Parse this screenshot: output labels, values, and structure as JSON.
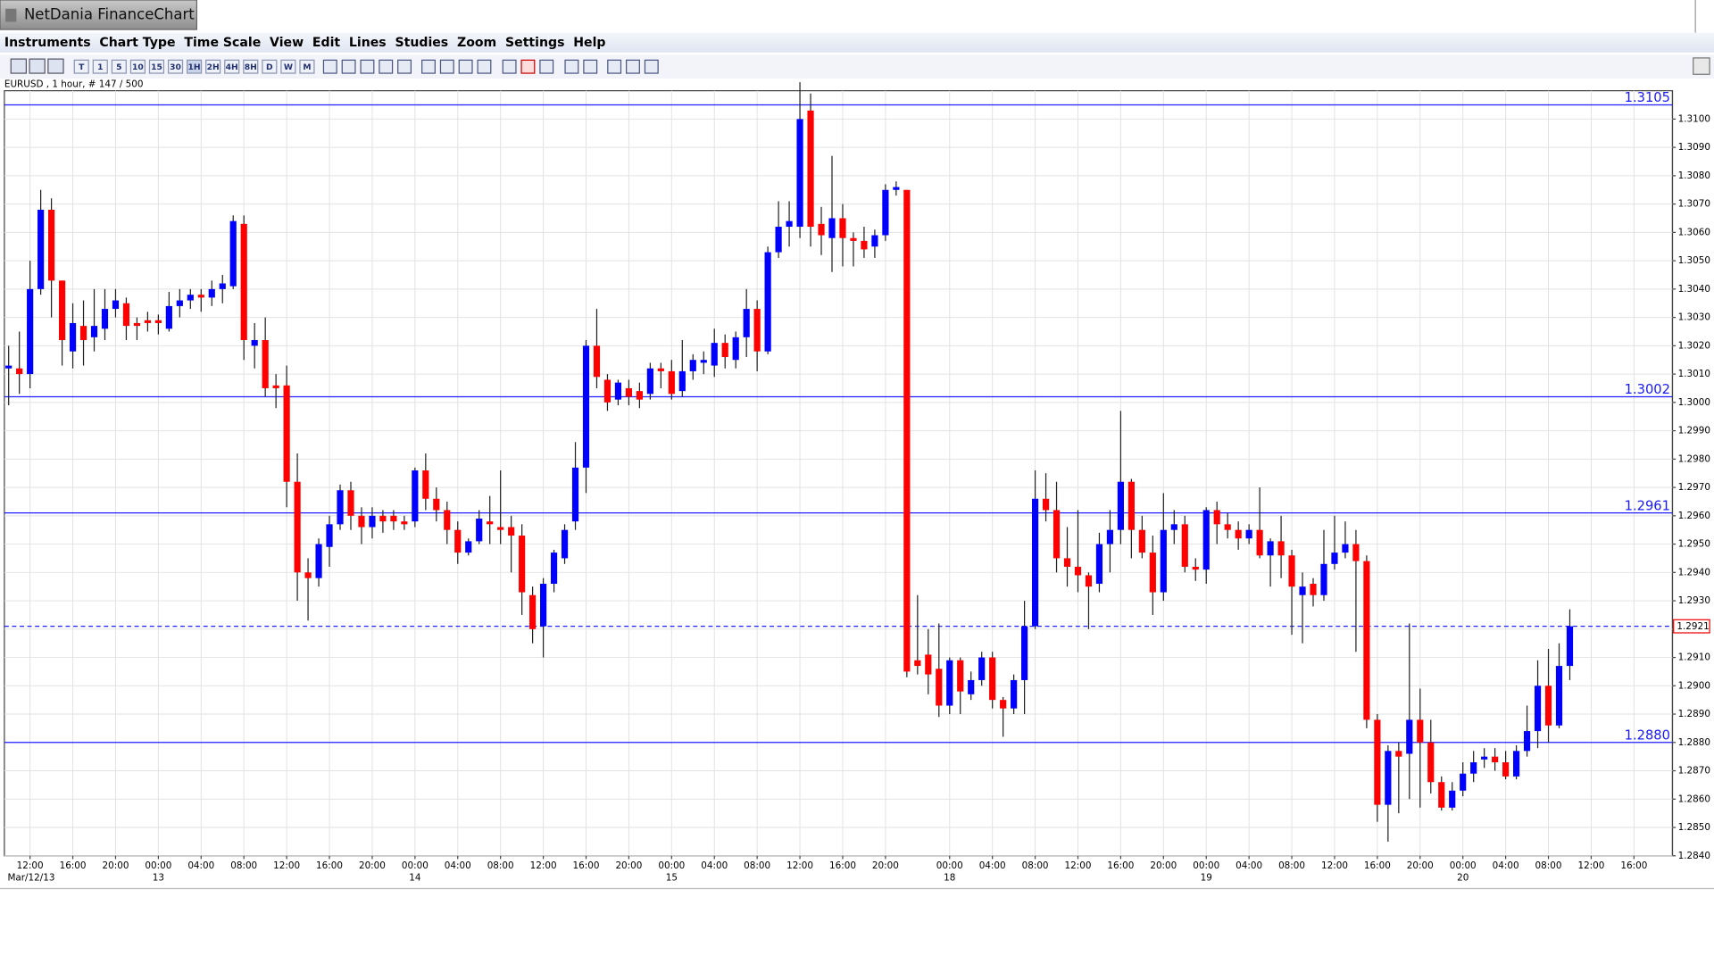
{
  "window": {
    "title": "NetDania FinanceChart"
  },
  "menu": [
    "Instruments",
    "Chart Type",
    "Time Scale",
    "View",
    "Edit",
    "Lines",
    "Studies",
    "Zoom",
    "Settings",
    "Help"
  ],
  "toolbar": [
    "T",
    "1",
    "5",
    "10",
    "15",
    "30",
    "1H",
    "2H",
    "4H",
    "8H",
    "D",
    "W",
    "M"
  ],
  "chart_data": {
    "type": "candlestick",
    "info": "EURUSD , 1 hour, # 147 / 500",
    "up_color": "#0000ff",
    "down_color": "#ff0000",
    "wick_color": "#222222",
    "grid": true,
    "xlim": [
      -0.4,
      155.6
    ],
    "ylim": [
      1.284,
      1.311
    ],
    "yticks": [
      {
        "value": 1.284,
        "label": "1.2840"
      },
      {
        "value": 1.285,
        "label": "1.2850"
      },
      {
        "value": 1.286,
        "label": "1.2860"
      },
      {
        "value": 1.287,
        "label": "1.2870"
      },
      {
        "value": 1.288,
        "label": "1.2880"
      },
      {
        "value": 1.289,
        "label": "1.2890"
      },
      {
        "value": 1.29,
        "label": "1.2900"
      },
      {
        "value": 1.291,
        "label": "1.2910"
      },
      {
        "value": 1.292,
        "label": "1.2920"
      },
      {
        "value": 1.293,
        "label": "1.2930"
      },
      {
        "value": 1.294,
        "label": "1.2940"
      },
      {
        "value": 1.295,
        "label": "1.2950"
      },
      {
        "value": 1.296,
        "label": "1.2960"
      },
      {
        "value": 1.297,
        "label": "1.2970"
      },
      {
        "value": 1.298,
        "label": "1.2980"
      },
      {
        "value": 1.299,
        "label": "1.2990"
      },
      {
        "value": 1.3,
        "label": "1.3000"
      },
      {
        "value": 1.301,
        "label": "1.3010"
      },
      {
        "value": 1.302,
        "label": "1.3020"
      },
      {
        "value": 1.303,
        "label": "1.3030"
      },
      {
        "value": 1.304,
        "label": "1.3040"
      },
      {
        "value": 1.305,
        "label": "1.3050"
      },
      {
        "value": 1.306,
        "label": "1.3060"
      },
      {
        "value": 1.307,
        "label": "1.3070"
      },
      {
        "value": 1.308,
        "label": "1.3080"
      },
      {
        "value": 1.309,
        "label": "1.3090"
      },
      {
        "value": 1.31,
        "label": "1.3100"
      }
    ],
    "xticks": [
      {
        "value": 2,
        "label": "12:00"
      },
      {
        "value": 6,
        "label": "16:00"
      },
      {
        "value": 10,
        "label": "20:00"
      },
      {
        "value": 14,
        "label": "00:00"
      },
      {
        "value": 18,
        "label": "04:00"
      },
      {
        "value": 22,
        "label": "08:00"
      },
      {
        "value": 26,
        "label": "12:00"
      },
      {
        "value": 30,
        "label": "16:00"
      },
      {
        "value": 34,
        "label": "20:00"
      },
      {
        "value": 38,
        "label": "00:00"
      },
      {
        "value": 42,
        "label": "04:00"
      },
      {
        "value": 46,
        "label": "08:00"
      },
      {
        "value": 50,
        "label": "12:00"
      },
      {
        "value": 54,
        "label": "16:00"
      },
      {
        "value": 58,
        "label": "20:00"
      },
      {
        "value": 62,
        "label": "00:00"
      },
      {
        "value": 66,
        "label": "04:00"
      },
      {
        "value": 70,
        "label": "08:00"
      },
      {
        "value": 74,
        "label": "12:00"
      },
      {
        "value": 78,
        "label": "16:00"
      },
      {
        "value": 82,
        "label": "20:00"
      },
      {
        "value": 88,
        "label": "00:00"
      },
      {
        "value": 92,
        "label": "04:00"
      },
      {
        "value": 96,
        "label": "08:00"
      },
      {
        "value": 100,
        "label": "12:00"
      },
      {
        "value": 104,
        "label": "16:00"
      },
      {
        "value": 108,
        "label": "20:00"
      },
      {
        "value": 112,
        "label": "00:00"
      },
      {
        "value": 116,
        "label": "04:00"
      },
      {
        "value": 120,
        "label": "08:00"
      },
      {
        "value": 124,
        "label": "12:00"
      },
      {
        "value": 128,
        "label": "16:00"
      },
      {
        "value": 132,
        "label": "20:00"
      },
      {
        "value": 136,
        "label": "00:00"
      },
      {
        "value": 140,
        "label": "04:00"
      },
      {
        "value": 144,
        "label": "08:00"
      },
      {
        "value": 148,
        "label": "12:00"
      },
      {
        "value": 152,
        "label": "16:00"
      }
    ],
    "xdates": [
      {
        "value": 0,
        "label": "Mar/12/13"
      },
      {
        "value": 14,
        "label": "13"
      },
      {
        "value": 38,
        "label": "14"
      },
      {
        "value": 62,
        "label": "15"
      },
      {
        "value": 88,
        "label": "18"
      },
      {
        "value": 112,
        "label": "19"
      },
      {
        "value": 136,
        "label": "20"
      }
    ],
    "levels": [
      1.3105,
      1.3002,
      1.2961,
      {
        "value": 1.288,
        "label": "1.2880"
      }
    ],
    "last_price": 1.2921,
    "open": [
      1.3012,
      1.3012,
      1.301,
      1.304,
      1.3068,
      1.3043,
      1.3018,
      1.3027,
      1.3023,
      1.3026,
      1.3033,
      1.3035,
      1.3028,
      1.3029,
      1.3029,
      1.3026,
      1.3034,
      1.3036,
      1.3038,
      1.3037,
      1.304,
      1.3041,
      1.3063,
      1.302,
      1.3022,
      1.3006,
      1.3006,
      1.2972,
      1.294,
      1.2938,
      1.2949,
      1.2957,
      1.2969,
      1.296,
      1.2956,
      1.296,
      1.296,
      1.2958,
      1.2958,
      1.2976,
      1.2966,
      1.2962,
      1.2955,
      1.2947,
      1.2951,
      1.2958,
      1.2956,
      1.2956,
      1.2953,
      1.2932,
      1.2921,
      1.2936,
      1.2945,
      1.2958,
      1.2977,
      1.302,
      1.3008,
      1.3001,
      1.3005,
      1.3004,
      1.3003,
      1.3012,
      1.3011,
      1.3004,
      1.3011,
      1.3014,
      1.3013,
      1.3021,
      1.3015,
      1.3023,
      1.3033,
      1.3018,
      1.3053,
      1.3062,
      1.3062,
      1.3103,
      1.3063,
      1.3058,
      1.3065,
      1.3058,
      1.3057,
      1.3055,
      1.3059,
      1.3075,
      1.3075,
      1.2909,
      1.2911,
      1.2906,
      1.2893,
      1.2909,
      1.2897,
      1.2902,
      1.291,
      1.2895,
      1.2892,
      1.2902,
      1.2921,
      1.2966,
      1.2962,
      1.2945,
      1.2942,
      1.2939,
      1.2936,
      1.295,
      1.2955,
      1.2972,
      1.2955,
      1.2947,
      1.2933,
      1.2955,
      1.2957,
      1.2942,
      1.2941,
      1.2962,
      1.2957,
      1.2955,
      1.2952,
      1.2955,
      1.2946,
      1.2951,
      1.2946,
      1.2932,
      1.2936,
      1.2932,
      1.2943,
      1.2947,
      1.295,
      1.2944,
      1.2888,
      1.2858,
      1.2877,
      1.2876,
      1.2888,
      1.288,
      1.2866,
      1.2857,
      1.2863,
      1.2869,
      1.2874,
      1.2875,
      1.2873,
      1.2868,
      1.2877,
      1.2884,
      1.29,
      1.2886,
      1.2907
    ],
    "high": [
      1.302,
      1.3025,
      1.305,
      1.3075,
      1.3072,
      1.3043,
      1.3035,
      1.3036,
      1.304,
      1.304,
      1.304,
      1.3037,
      1.303,
      1.3032,
      1.3031,
      1.3039,
      1.304,
      1.304,
      1.304,
      1.3043,
      1.3045,
      1.3066,
      1.3066,
      1.3028,
      1.303,
      1.301,
      1.3013,
      1.2982,
      1.2945,
      1.2952,
      1.296,
      1.2971,
      1.2972,
      1.2963,
      1.2963,
      1.2962,
      1.2962,
      1.296,
      1.2977,
      1.2982,
      1.297,
      1.2965,
      1.2958,
      1.2952,
      1.2962,
      1.2967,
      1.2976,
      1.296,
      1.2957,
      1.2935,
      1.2938,
      1.2948,
      1.2957,
      1.2986,
      1.3022,
      1.3033,
      1.301,
      1.3008,
      1.3008,
      1.3007,
      1.3014,
      1.3014,
      1.3015,
      1.3022,
      1.3017,
      1.3018,
      1.3026,
      1.3024,
      1.3025,
      1.304,
      1.3036,
      1.3055,
      1.3071,
      1.3071,
      1.3113,
      1.3109,
      1.3069,
      1.3087,
      1.307,
      1.306,
      1.3062,
      1.3061,
      1.3077,
      1.3078,
      1.3075,
      1.2932,
      1.292,
      1.2922,
      1.291,
      1.291,
      1.2905,
      1.2912,
      1.2912,
      1.2896,
      1.2904,
      1.293,
      1.2976,
      1.2975,
      1.2972,
      1.2956,
      1.2962,
      1.294,
      1.2954,
      1.2962,
      1.2997,
      1.2973,
      1.296,
      1.2953,
      1.2968,
      1.2962,
      1.296,
      1.2945,
      1.2963,
      1.2965,
      1.2961,
      1.2958,
      1.2957,
      1.297,
      1.2952,
      1.296,
      1.2948,
      1.294,
      1.2938,
      1.2955,
      1.296,
      1.2958,
      1.2955,
      1.2946,
      1.289,
      1.2879,
      1.288,
      1.2922,
      1.2899,
      1.2888,
      1.2868,
      1.2866,
      1.2873,
      1.2877,
      1.2878,
      1.2878,
      1.2877,
      1.2879,
      1.2893,
      1.2909,
      1.2913,
      1.2915,
      1.2927
    ],
    "low": [
      1.2999,
      1.3003,
      1.3005,
      1.3038,
      1.303,
      1.3013,
      1.3012,
      1.3013,
      1.3018,
      1.3022,
      1.303,
      1.3022,
      1.3022,
      1.3025,
      1.3024,
      1.3025,
      1.303,
      1.3033,
      1.3032,
      1.3034,
      1.3035,
      1.304,
      1.3015,
      1.3012,
      1.3002,
      1.2998,
      1.2963,
      1.293,
      1.2923,
      1.2935,
      1.2942,
      1.2955,
      1.2955,
      1.295,
      1.2952,
      1.2954,
      1.2955,
      1.2955,
      1.2956,
      1.2962,
      1.2958,
      1.295,
      1.2943,
      1.2946,
      1.295,
      1.295,
      1.295,
      1.294,
      1.2925,
      1.2915,
      1.291,
      1.2933,
      1.2943,
      1.2955,
      1.2968,
      1.3005,
      1.2997,
      1.2999,
      1.2999,
      1.2998,
      1.3001,
      1.3005,
      1.3001,
      1.3002,
      1.3008,
      1.301,
      1.3009,
      1.3012,
      1.3012,
      1.3016,
      1.3011,
      1.3017,
      1.3051,
      1.3055,
      1.3058,
      1.3055,
      1.3052,
      1.3046,
      1.3048,
      1.3048,
      1.3051,
      1.3051,
      1.3057,
      1.3073,
      1.2903,
      1.2904,
      1.2897,
      1.2889,
      1.289,
      1.289,
      1.2895,
      1.29,
      1.2892,
      1.2882,
      1.289,
      1.289,
      1.292,
      1.2958,
      1.294,
      1.2935,
      1.2933,
      1.292,
      1.2933,
      1.294,
      1.295,
      1.2945,
      1.2945,
      1.2925,
      1.293,
      1.295,
      1.294,
      1.2937,
      1.2936,
      1.295,
      1.2952,
      1.2948,
      1.295,
      1.2945,
      1.2935,
      1.2938,
      1.2918,
      1.2915,
      1.2928,
      1.293,
      1.2941,
      1.2945,
      1.2912,
      1.2885,
      1.2852,
      1.2845,
      1.2855,
      1.286,
      1.2857,
      1.2862,
      1.2856,
      1.2856,
      1.2861,
      1.2866,
      1.2871,
      1.287,
      1.2867,
      1.2867,
      1.2875,
      1.2878,
      1.288,
      1.2885,
      1.2902
    ],
    "close": [
      1.3013,
      1.301,
      1.304,
      1.3068,
      1.3043,
      1.3022,
      1.3028,
      1.3022,
      1.3027,
      1.3033,
      1.3036,
      1.3027,
      1.3027,
      1.3028,
      1.3028,
      1.3034,
      1.3036,
      1.3038,
      1.3037,
      1.304,
      1.3042,
      1.3064,
      1.3022,
      1.3022,
      1.3005,
      1.3005,
      1.2972,
      1.294,
      1.2938,
      1.295,
      1.2957,
      1.2969,
      1.296,
      1.2956,
      1.296,
      1.2958,
      1.2958,
      1.2957,
      1.2976,
      1.2966,
      1.2962,
      1.2955,
      1.2947,
      1.2951,
      1.2959,
      1.2957,
      1.2955,
      1.2953,
      1.2933,
      1.292,
      1.2936,
      1.2947,
      1.2955,
      1.2977,
      1.302,
      1.3009,
      1.3,
      1.3007,
      1.3002,
      1.3001,
      1.3012,
      1.3011,
      1.3003,
      1.3011,
      1.3015,
      1.3015,
      1.3021,
      1.3016,
      1.3023,
      1.3033,
      1.3018,
      1.3053,
      1.3062,
      1.3064,
      1.31,
      1.3062,
      1.3059,
      1.3065,
      1.3058,
      1.3057,
      1.3054,
      1.3059,
      1.3075,
      1.3076,
      1.2905,
      1.2907,
      1.2904,
      1.2893,
      1.2909,
      1.2898,
      1.2902,
      1.291,
      1.2895,
      1.2892,
      1.2902,
      1.2921,
      1.2966,
      1.2962,
      1.2945,
      1.2942,
      1.2939,
      1.2935,
      1.295,
      1.2955,
      1.2972,
      1.2955,
      1.2947,
      1.2933,
      1.2955,
      1.2957,
      1.2942,
      1.2941,
      1.2962,
      1.2957,
      1.2955,
      1.2952,
      1.2955,
      1.2946,
      1.2951,
      1.2946,
      1.2935,
      1.2935,
      1.2932,
      1.2943,
      1.2947,
      1.295,
      1.2944,
      1.2888,
      1.2858,
      1.2877,
      1.2875,
      1.2888,
      1.288,
      1.2866,
      1.2857,
      1.2863,
      1.2869,
      1.2873,
      1.2875,
      1.2873,
      1.2868,
      1.2877,
      1.2884,
      1.29,
      1.2886,
      1.2907,
      1.2921
    ]
  }
}
